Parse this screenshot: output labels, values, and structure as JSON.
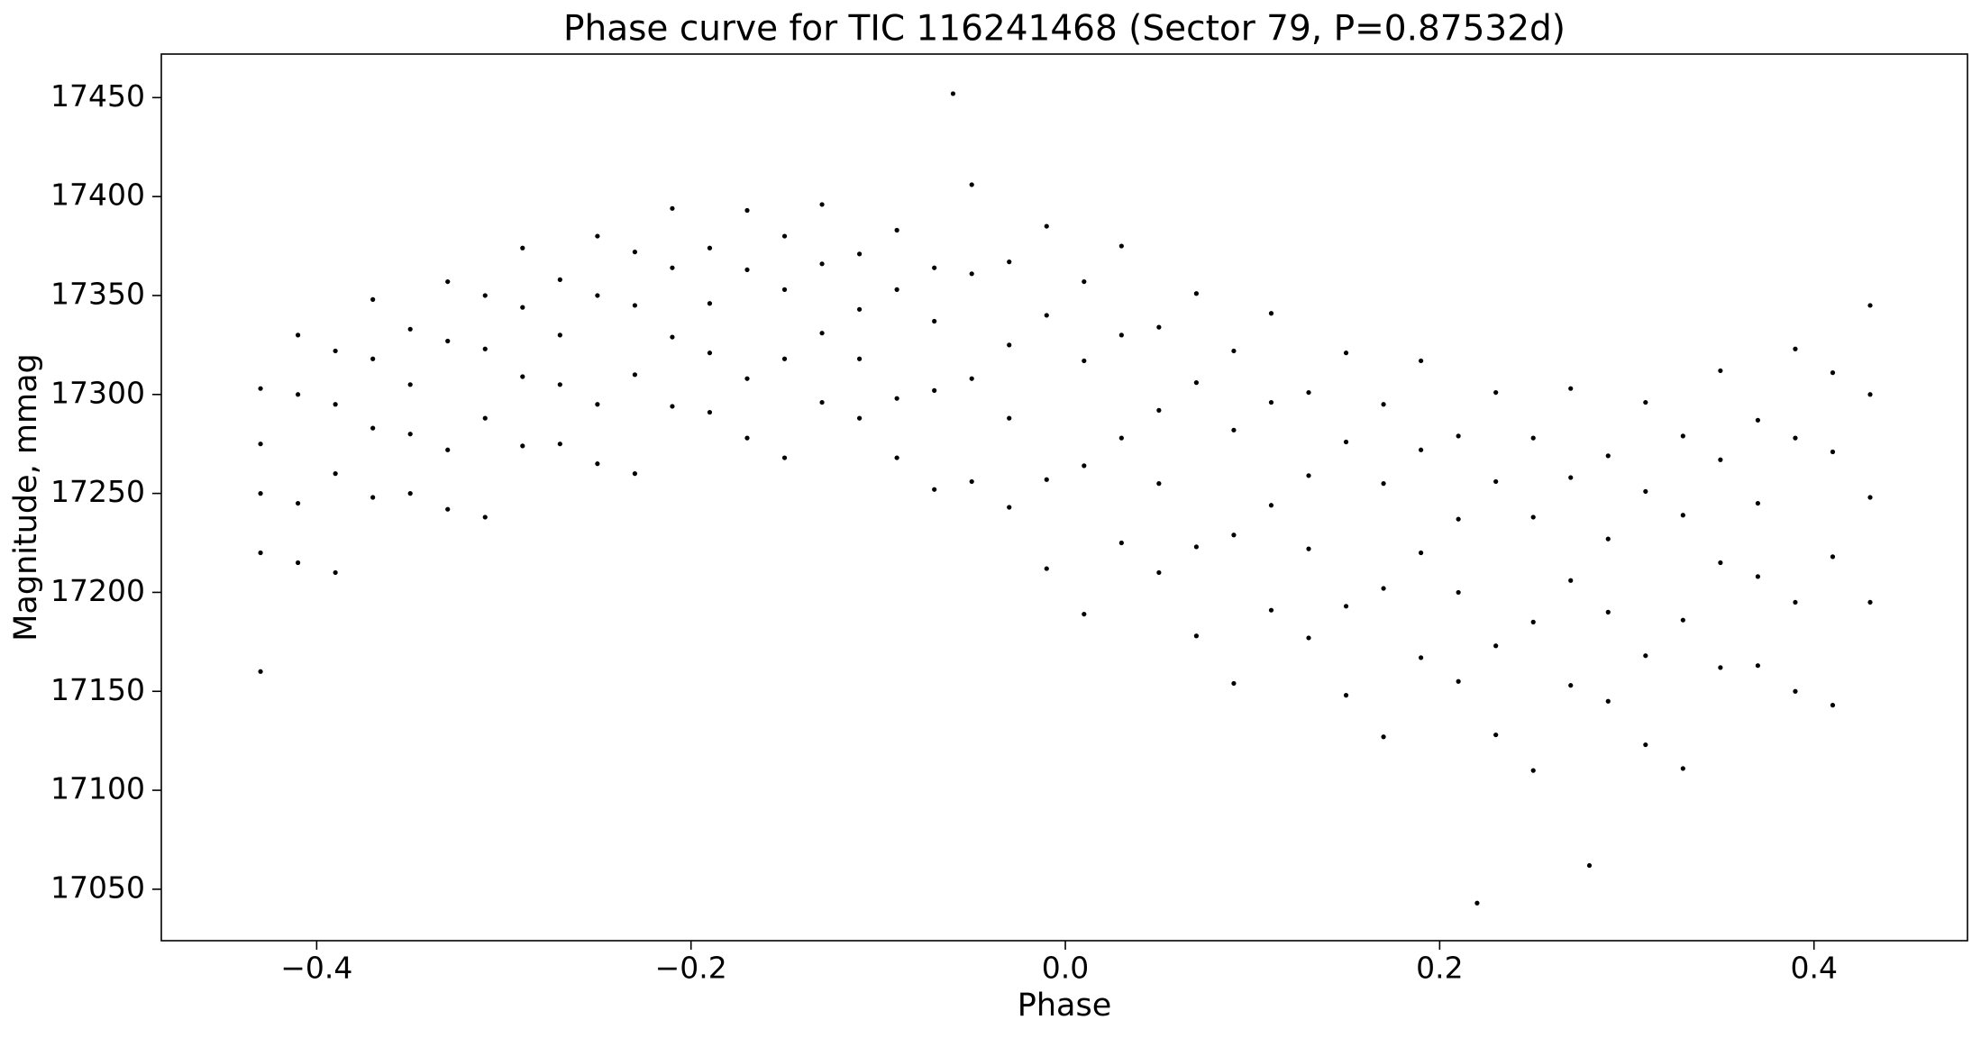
{
  "chart_data": {
    "type": "scatter",
    "title": "Phase curve for TIC 116241468 (Sector 79, P=0.87532d)",
    "x_label": "Phase",
    "y_label": "Magnitude, mmag",
    "color": "#000000",
    "xlim": [
      -0.483,
      0.482
    ],
    "ylim": [
      17024,
      17472
    ],
    "xticks": [
      {
        "value": -0.4,
        "label": "−0.4"
      },
      {
        "value": -0.2,
        "label": "−0.2"
      },
      {
        "value": 0.0,
        "label": "0.0"
      },
      0.2,
      0.4
    ],
    "yticks": [
      17050,
      17100,
      17150,
      17200,
      17250,
      17300,
      17350,
      17400,
      17450
    ],
    "x": [
      -0.43,
      -0.43,
      -0.43,
      -0.43,
      -0.41,
      -0.41,
      -0.41,
      -0.41,
      -0.39,
      -0.39,
      -0.39,
      -0.39,
      -0.37,
      -0.37,
      -0.37,
      -0.37,
      -0.35,
      -0.35,
      -0.35,
      -0.35,
      -0.33,
      -0.33,
      -0.33,
      -0.33,
      -0.31,
      -0.31,
      -0.31,
      -0.31,
      -0.29,
      -0.29,
      -0.29,
      -0.29,
      -0.27,
      -0.27,
      -0.27,
      -0.27,
      -0.25,
      -0.25,
      -0.25,
      -0.25,
      -0.23,
      -0.23,
      -0.23,
      -0.23,
      -0.21,
      -0.21,
      -0.21,
      -0.21,
      -0.19,
      -0.19,
      -0.19,
      -0.19,
      -0.17,
      -0.17,
      -0.17,
      -0.17,
      -0.15,
      -0.15,
      -0.15,
      -0.15,
      -0.13,
      -0.13,
      -0.13,
      -0.13,
      -0.11,
      -0.11,
      -0.11,
      -0.11,
      -0.09,
      -0.09,
      -0.09,
      -0.09,
      -0.07,
      -0.07,
      -0.07,
      -0.07,
      -0.05,
      -0.05,
      -0.05,
      -0.05,
      -0.03,
      -0.03,
      -0.03,
      -0.03,
      -0.01,
      -0.01,
      -0.01,
      -0.01,
      0.01,
      0.01,
      0.01,
      0.01,
      0.03,
      0.03,
      0.03,
      0.03,
      0.05,
      0.05,
      0.05,
      0.05,
      0.07,
      0.07,
      0.07,
      0.07,
      0.09,
      0.09,
      0.09,
      0.09,
      0.11,
      0.11,
      0.11,
      0.11,
      0.13,
      0.13,
      0.13,
      0.13,
      0.15,
      0.15,
      0.15,
      0.15,
      0.17,
      0.17,
      0.17,
      0.17,
      0.19,
      0.19,
      0.19,
      0.19,
      0.21,
      0.21,
      0.21,
      0.21,
      0.23,
      0.23,
      0.23,
      0.23,
      0.25,
      0.25,
      0.25,
      0.25,
      0.27,
      0.27,
      0.27,
      0.27,
      0.29,
      0.29,
      0.29,
      0.29,
      0.31,
      0.31,
      0.31,
      0.31,
      0.33,
      0.33,
      0.33,
      0.33,
      0.35,
      0.35,
      0.35,
      0.35,
      0.37,
      0.37,
      0.37,
      0.37,
      0.39,
      0.39,
      0.39,
      0.39,
      0.41,
      0.41,
      0.41,
      0.41,
      0.43,
      0.43,
      0.43,
      0.43,
      0.22,
      0.28,
      -0.06,
      -0.43
    ],
    "values": [
      17220,
      17275,
      17303,
      17250,
      17300,
      17245,
      17330,
      17215,
      17260,
      17322,
      17210,
      17295,
      17348,
      17283,
      17248,
      17318,
      17250,
      17305,
      17333,
      17280,
      17327,
      17272,
      17357,
      17242,
      17288,
      17350,
      17238,
      17323,
      17374,
      17309,
      17274,
      17344,
      17275,
      17330,
      17358,
      17305,
      17350,
      17295,
      17380,
      17265,
      17310,
      17372,
      17260,
      17345,
      17394,
      17329,
      17294,
      17364,
      17291,
      17346,
      17374,
      17321,
      17363,
      17308,
      17393,
      17278,
      17318,
      17380,
      17268,
      17353,
      17396,
      17331,
      17296,
      17366,
      17288,
      17343,
      17371,
      17318,
      17353,
      17298,
      17383,
      17268,
      17302,
      17364,
      17252,
      17337,
      17406,
      17308,
      17256,
      17361,
      17243,
      17325,
      17367,
      17288,
      17340,
      17257,
      17385,
      17212,
      17264,
      17357,
      17189,
      17317,
      17375,
      17278,
      17225,
      17330,
      17210,
      17292,
      17334,
      17255,
      17306,
      17223,
      17351,
      17178,
      17229,
      17322,
      17154,
      17282,
      17341,
      17244,
      17191,
      17296,
      17177,
      17259,
      17301,
      17222,
      17276,
      17193,
      17321,
      17148,
      17202,
      17295,
      17127,
      17255,
      17317,
      17220,
      17167,
      17272,
      17155,
      17237,
      17279,
      17200,
      17256,
      17173,
      17301,
      17128,
      17185,
      17278,
      17110,
      17238,
      17303,
      17206,
      17153,
      17258,
      17145,
      17227,
      17269,
      17190,
      17251,
      17168,
      17296,
      17123,
      17186,
      17279,
      17111,
      17239,
      17312,
      17215,
      17162,
      17267,
      17163,
      17245,
      17287,
      17208,
      17278,
      17195,
      17323,
      17150,
      17218,
      17311,
      17143,
      17271,
      17345,
      17248,
      17195,
      17300,
      17043,
      17062,
      17452,
      17160
    ]
  }
}
